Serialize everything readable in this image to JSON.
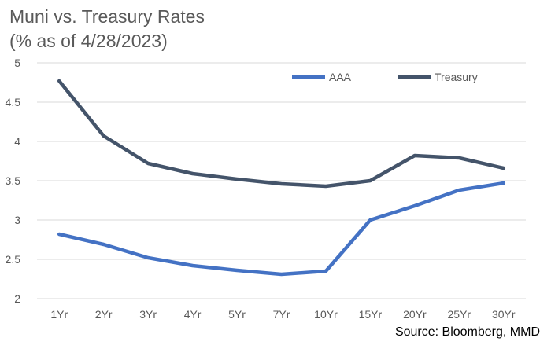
{
  "chart_data": {
    "type": "line",
    "title_line1": "Muni vs. Treasury Rates",
    "title_line2": "(% as of 4/28/2023)",
    "xlabel": "",
    "ylabel": "",
    "categories": [
      "1Yr",
      "2Yr",
      "3Yr",
      "4Yr",
      "5Yr",
      "7Yr",
      "10Yr",
      "15Yr",
      "20Yr",
      "25Yr",
      "30Yr"
    ],
    "ylim": [
      2,
      5
    ],
    "yticks": [
      "2",
      "2.5",
      "3",
      "3.5",
      "4",
      "4.5",
      "5"
    ],
    "grid": true,
    "legend_position": "top-right",
    "series": [
      {
        "name": "AAA",
        "color": "#4472C4",
        "values": [
          2.82,
          2.69,
          2.52,
          2.42,
          2.36,
          2.31,
          2.35,
          3.0,
          3.18,
          3.38,
          3.47
        ]
      },
      {
        "name": "Treasury",
        "color": "#44546A",
        "values": [
          4.77,
          4.07,
          3.72,
          3.59,
          3.52,
          3.46,
          3.43,
          3.5,
          3.82,
          3.79,
          3.66
        ]
      }
    ],
    "source": "Source: Bloomberg, MMD"
  }
}
